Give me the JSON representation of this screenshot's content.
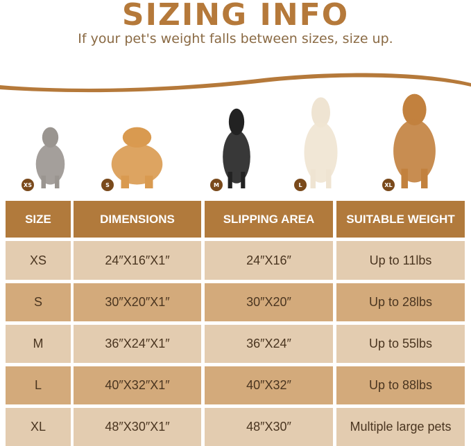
{
  "title": "SIZING INFO",
  "subtitle": "If your pet's weight falls between sizes, size up.",
  "pets": [
    {
      "badge": "XS",
      "animal": "cat",
      "color": "#9a9590"
    },
    {
      "badge": "S",
      "animal": "corgi",
      "color": "#d99a50"
    },
    {
      "badge": "M",
      "animal": "border collie",
      "color": "#222222"
    },
    {
      "badge": "L",
      "animal": "labrador",
      "color": "#efe4d2"
    },
    {
      "badge": "XL",
      "animal": "golden retriever",
      "color": "#c2813e"
    }
  ],
  "table": {
    "headers": [
      "SIZE",
      "DIMENSIONS",
      "SLIPPING AREA",
      "SUITABLE WEIGHT"
    ],
    "rows": [
      [
        "XS",
        "24″X16″X1″",
        "24″X16″",
        "Up to 11lbs"
      ],
      [
        "S",
        "30″X20″X1″",
        "30″X20″",
        "Up to 28lbs"
      ],
      [
        "M",
        "36″X24″X1″",
        "36″X24″",
        "Up to 55lbs"
      ],
      [
        "L",
        "40″X32″X1″",
        "40″X32″",
        "Up to 88lbs"
      ],
      [
        "XL",
        "48″X30″X1″",
        "48″X30″",
        "Multiple large pets"
      ]
    ]
  },
  "colors": {
    "header": "#b17a3c",
    "row_light": "#e3ccb0",
    "row_dark": "#d3aa7b",
    "title": "#b5793a"
  }
}
